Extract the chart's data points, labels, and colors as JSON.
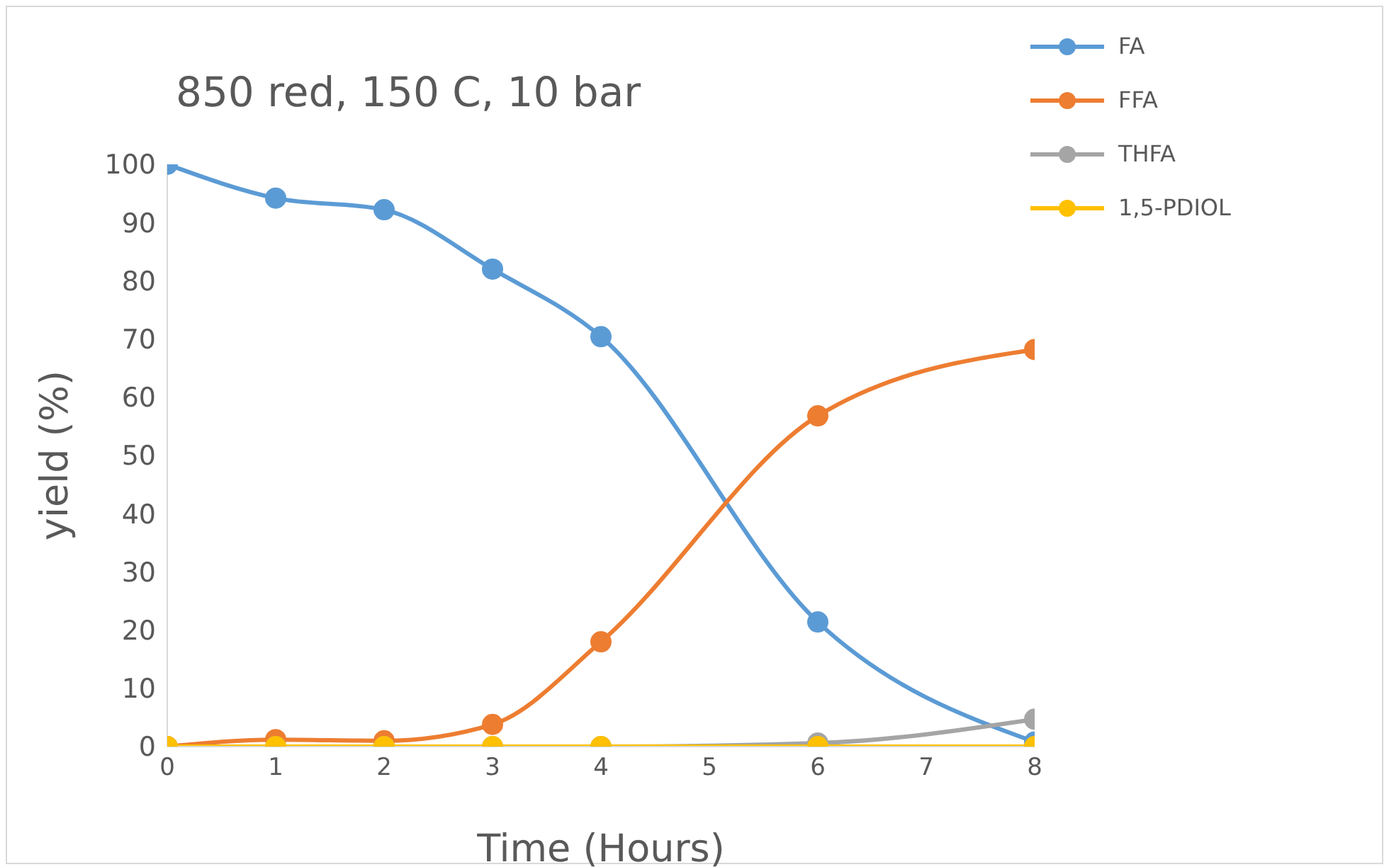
{
  "chart_data": {
    "type": "line",
    "title": "850 red, 150 C, 10 bar",
    "xlabel": "Time (Hours)",
    "ylabel": "yield (%)",
    "x": [
      0,
      1,
      2,
      3,
      4,
      6,
      8
    ],
    "series": [
      {
        "name": "FA",
        "color": "#5b9bd5",
        "values": [
          100,
          94.2,
          92.2,
          82,
          70.4,
          21.4,
          0.8
        ]
      },
      {
        "name": "FFA",
        "color": "#ed7d31",
        "values": [
          0,
          1.2,
          1,
          3.8,
          18,
          56.8,
          68.2
        ]
      },
      {
        "name": "THFA",
        "color": "#a5a5a5",
        "values": [
          0,
          0,
          0,
          0,
          0,
          0.6,
          4.7
        ]
      },
      {
        "name": "1,5-PDIOL",
        "color": "#ffc000",
        "values": [
          0,
          0,
          0,
          0,
          0,
          0,
          0
        ]
      }
    ],
    "xlim": [
      0,
      8
    ],
    "xticks": [
      0,
      1,
      2,
      3,
      4,
      5,
      6,
      7,
      8
    ],
    "ylim": [
      0,
      100
    ],
    "yticks": [
      0,
      10,
      20,
      30,
      40,
      50,
      60,
      70,
      80,
      90,
      100
    ],
    "grid": false,
    "legend": "top right",
    "marker": "circle",
    "line_style": "solid"
  }
}
